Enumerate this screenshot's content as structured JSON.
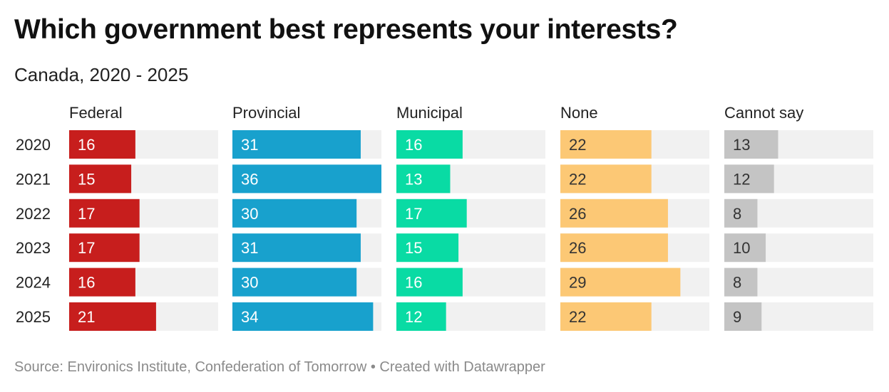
{
  "title": "Which government best represents your interests?",
  "subtitle": "Canada, 2020 - 2025",
  "source": "Source: Environics Institute, Confederation of Tomorrow • Created with Datawrapper",
  "chart_data": {
    "type": "bar",
    "orientation": "horizontal",
    "layout": "small-multiples",
    "categories": [
      "2020",
      "2021",
      "2022",
      "2023",
      "2024",
      "2025"
    ],
    "max_value": 36,
    "series": [
      {
        "name": "Federal",
        "color": "#c71e1d",
        "values": [
          16,
          15,
          17,
          17,
          16,
          21
        ]
      },
      {
        "name": "Provincial",
        "color": "#18a1cd",
        "values": [
          31,
          36,
          30,
          31,
          30,
          34
        ]
      },
      {
        "name": "Municipal",
        "color": "#09dba4",
        "values": [
          16,
          13,
          17,
          15,
          16,
          12
        ]
      },
      {
        "name": "None",
        "color": "#fcc875",
        "values": [
          22,
          22,
          26,
          26,
          29,
          22
        ]
      },
      {
        "name": "Cannot say",
        "color": "#c4c4c4",
        "values": [
          13,
          12,
          8,
          10,
          8,
          9
        ]
      }
    ],
    "background_bar_color": "#f1f1f1",
    "grid": false,
    "legend": "none"
  }
}
